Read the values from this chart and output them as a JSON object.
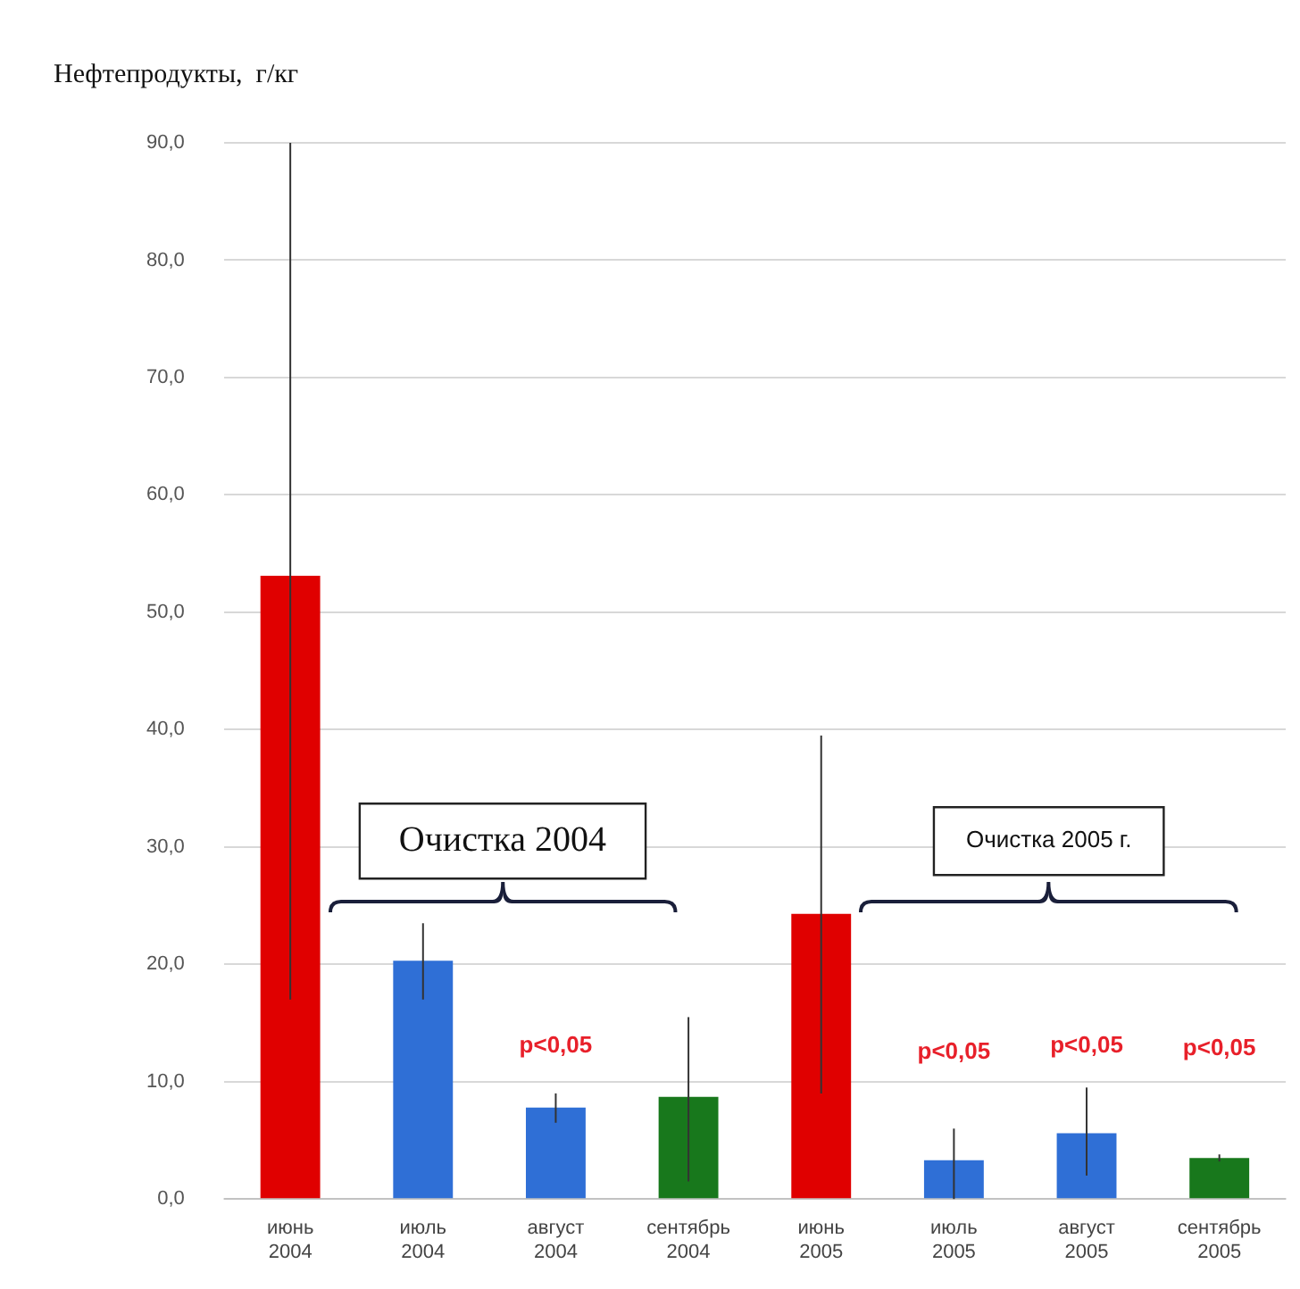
{
  "chart_data": {
    "type": "bar",
    "ylabel": "Нефтепродукты,  г/кг",
    "categories": [
      "июнь 2004",
      "июль 2004",
      "август 2004",
      "сентябрь 2004",
      "июнь 2005",
      "июль 2005",
      "август 2005",
      "сентябрь 2005"
    ],
    "values": [
      53.1,
      20.3,
      7.8,
      8.7,
      24.3,
      3.3,
      5.6,
      3.5
    ],
    "colors": [
      "#e00000",
      "#2f6fd6",
      "#2f6fd6",
      "#18781c",
      "#e00000",
      "#2f6fd6",
      "#2f6fd6",
      "#18781c"
    ],
    "errors": [
      [
        17,
        90
      ],
      [
        17,
        23.5
      ],
      [
        6.5,
        9
      ],
      [
        1.5,
        15.5
      ],
      [
        9,
        39.5
      ],
      [
        0,
        6
      ],
      [
        2,
        9.5
      ],
      [
        3.2,
        3.8
      ]
    ],
    "ylim": [
      0,
      90
    ],
    "yticks": [
      {
        "value": 0,
        "label": "0,0"
      },
      {
        "value": 10,
        "label": "10,0"
      },
      {
        "value": 20,
        "label": "20,0"
      },
      {
        "value": 30,
        "label": "30,0"
      },
      {
        "value": 40,
        "label": "40,0"
      },
      {
        "value": 50,
        "label": "50,0"
      },
      {
        "value": 60,
        "label": "60,0"
      },
      {
        "value": 70,
        "label": "70,0"
      },
      {
        "value": 80,
        "label": "80,0"
      },
      {
        "value": 90,
        "label": "90,0"
      }
    ],
    "grid": "y",
    "legend": false,
    "annotations": [
      "Очистка 2004",
      "Очистка 2005 г.",
      "p<0,05",
      "p<0,05",
      "p<0,05",
      "p<0,05"
    ]
  }
}
